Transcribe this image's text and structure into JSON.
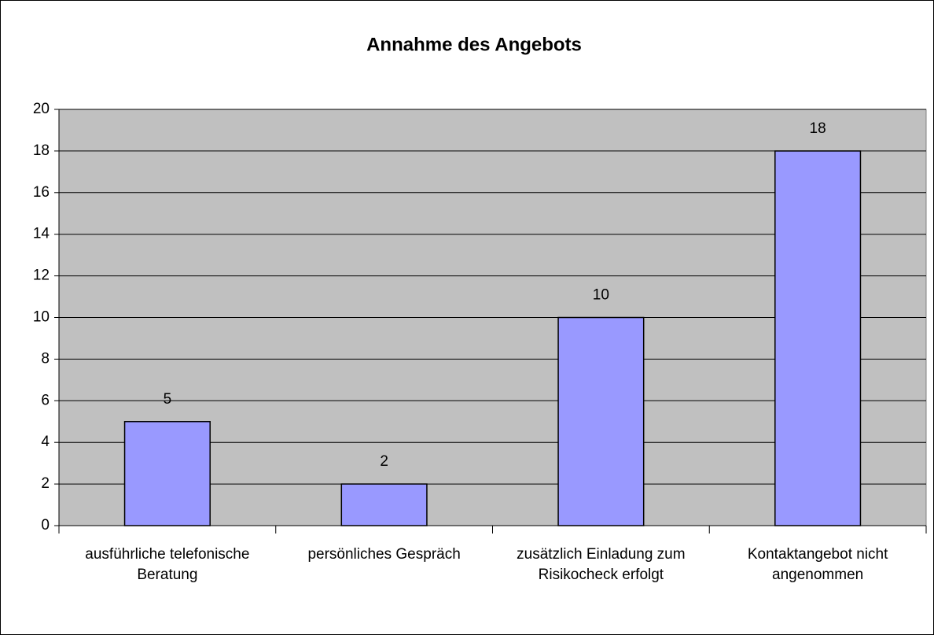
{
  "chart_data": {
    "type": "bar",
    "title": "Annahme des Angebots",
    "categories": [
      "ausführliche telefonische Beratung",
      "persönliches Gespräch",
      "zusätzlich Einladung zum Risikocheck erfolgt",
      "Kontaktangebot nicht angenommen"
    ],
    "values": [
      5,
      2,
      10,
      18
    ],
    "color": "#9999ff",
    "plot_background": "#c0c0c0",
    "ylim": [
      0,
      20
    ],
    "yticks": [
      0,
      2,
      4,
      6,
      8,
      10,
      12,
      14,
      16,
      18,
      20
    ],
    "grid": true
  }
}
